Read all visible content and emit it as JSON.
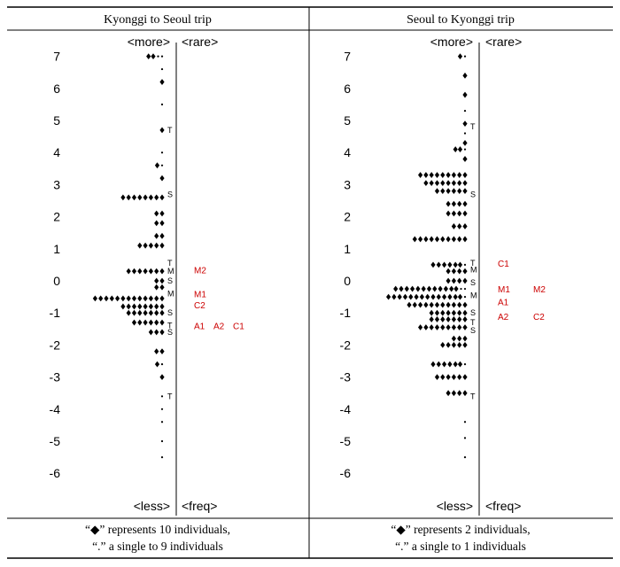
{
  "headers": [
    "Kyonggi to Seoul trip",
    "Seoul to Kyonggi trip"
  ],
  "chart_data": [
    {
      "type": "scatter",
      "title": "Kyonggi to Seoul trip",
      "ylim": [
        -6,
        7
      ],
      "yticks": [
        7,
        6,
        5,
        4,
        3,
        2,
        1,
        0,
        -1,
        -2,
        -3,
        -4,
        -5,
        -6
      ],
      "labels": {
        "more": "<more>",
        "rare": "<rare>",
        "less": "<less>",
        "freq": "<freq>"
      },
      "rows": [
        {
          "y": 7.0,
          "d": 2,
          "s": 2
        },
        {
          "y": 6.6,
          "d": 0,
          "s": 1
        },
        {
          "y": 6.2,
          "d": 1,
          "s": 0
        },
        {
          "y": 5.5,
          "d": 0,
          "s": 1
        },
        {
          "y": 4.7,
          "d": 1,
          "s": 0
        },
        {
          "y": 4.0,
          "d": 0,
          "s": 1
        },
        {
          "y": 3.6,
          "d": 1,
          "s": 1
        },
        {
          "y": 3.2,
          "d": 1,
          "s": 0
        },
        {
          "y": 2.6,
          "d": 8,
          "s": 0
        },
        {
          "y": 2.1,
          "d": 2,
          "s": 0
        },
        {
          "y": 1.8,
          "d": 2,
          "s": 0
        },
        {
          "y": 1.4,
          "d": 2,
          "s": 0
        },
        {
          "y": 1.1,
          "d": 5,
          "s": 0
        },
        {
          "y": 0.3,
          "d": 7,
          "s": 0
        },
        {
          "y": 0.0,
          "d": 2,
          "s": 0
        },
        {
          "y": -0.2,
          "d": 2,
          "s": 0
        },
        {
          "y": -0.55,
          "d": 13,
          "s": 0
        },
        {
          "y": -0.8,
          "d": 8,
          "s": 0
        },
        {
          "y": -1.0,
          "d": 7,
          "s": 0
        },
        {
          "y": -1.3,
          "d": 6,
          "s": 0
        },
        {
          "y": -1.6,
          "d": 3,
          "s": 0
        },
        {
          "y": -2.2,
          "d": 2,
          "s": 0
        },
        {
          "y": -2.6,
          "d": 1,
          "s": 1
        },
        {
          "y": -3.0,
          "d": 1,
          "s": 0
        },
        {
          "y": -3.6,
          "d": 0,
          "s": 1
        },
        {
          "y": -4.0,
          "d": 0,
          "s": 1
        },
        {
          "y": -4.4,
          "d": 0,
          "s": 1
        },
        {
          "y": -5.0,
          "d": 0,
          "s": 1
        },
        {
          "y": -5.5,
          "d": 0,
          "s": 1
        }
      ],
      "markers": [
        {
          "y": 4.7,
          "t": "T"
        },
        {
          "y": 2.7,
          "t": "S"
        },
        {
          "y": 0.55,
          "t": "T"
        },
        {
          "y": 0.3,
          "t": "M"
        },
        {
          "y": 0.0,
          "t": "S"
        },
        {
          "y": -0.4,
          "t": "M"
        },
        {
          "y": -1.0,
          "t": "S"
        },
        {
          "y": -1.4,
          "t": "T"
        },
        {
          "y": -1.6,
          "t": "S"
        },
        {
          "y": -3.6,
          "t": "T"
        }
      ],
      "groups": [
        {
          "y": 0.35,
          "col": 0,
          "t": "M2"
        },
        {
          "y": -0.4,
          "col": 0,
          "t": "M1"
        },
        {
          "y": -0.75,
          "col": 0,
          "t": "C2"
        },
        {
          "y": -1.4,
          "col": 0,
          "t": "A1"
        },
        {
          "y": -1.4,
          "col": 1,
          "t": "A2"
        },
        {
          "y": -1.4,
          "col": 2,
          "t": "C1"
        }
      ],
      "legend": [
        "“◆” represents 10 individuals,",
        "“.” a single to 9 individuals"
      ]
    },
    {
      "type": "scatter",
      "title": "Seoul to Kyonggi trip",
      "ylim": [
        -6,
        7
      ],
      "yticks": [
        7,
        6,
        5,
        4,
        3,
        2,
        1,
        0,
        -1,
        -2,
        -3,
        -4,
        -5,
        -6
      ],
      "labels": {
        "more": "<more>",
        "rare": "<rare>",
        "less": "<less>",
        "freq": "<freq>"
      },
      "rows": [
        {
          "y": 7.0,
          "d": 1,
          "s": 1
        },
        {
          "y": 6.4,
          "d": 1,
          "s": 0
        },
        {
          "y": 5.8,
          "d": 1,
          "s": 0
        },
        {
          "y": 5.3,
          "d": 0,
          "s": 1
        },
        {
          "y": 4.9,
          "d": 1,
          "s": 0
        },
        {
          "y": 4.6,
          "d": 0,
          "s": 1
        },
        {
          "y": 4.3,
          "d": 1,
          "s": 0
        },
        {
          "y": 4.1,
          "d": 2,
          "s": 1
        },
        {
          "y": 3.8,
          "d": 1,
          "s": 0
        },
        {
          "y": 3.3,
          "d": 9,
          "s": 0
        },
        {
          "y": 3.05,
          "d": 8,
          "s": 0
        },
        {
          "y": 2.8,
          "d": 6,
          "s": 0
        },
        {
          "y": 2.4,
          "d": 4,
          "s": 0
        },
        {
          "y": 2.1,
          "d": 4,
          "s": 0
        },
        {
          "y": 1.7,
          "d": 3,
          "s": 0
        },
        {
          "y": 1.3,
          "d": 10,
          "s": 0
        },
        {
          "y": 0.5,
          "d": 6,
          "s": 1
        },
        {
          "y": 0.3,
          "d": 4,
          "s": 0
        },
        {
          "y": 0.0,
          "d": 4,
          "s": 0
        },
        {
          "y": -0.25,
          "d": 12,
          "s": 2
        },
        {
          "y": -0.5,
          "d": 14,
          "s": 1
        },
        {
          "y": -0.75,
          "d": 11,
          "s": 0
        },
        {
          "y": -1.0,
          "d": 7,
          "s": 0
        },
        {
          "y": -1.2,
          "d": 7,
          "s": 0
        },
        {
          "y": -1.45,
          "d": 9,
          "s": 0
        },
        {
          "y": -1.8,
          "d": 3,
          "s": 0
        },
        {
          "y": -2.0,
          "d": 5,
          "s": 0
        },
        {
          "y": -2.6,
          "d": 6,
          "s": 1
        },
        {
          "y": -3.0,
          "d": 6,
          "s": 0
        },
        {
          "y": -3.5,
          "d": 4,
          "s": 0
        },
        {
          "y": -4.4,
          "d": 0,
          "s": 1
        },
        {
          "y": -4.9,
          "d": 0,
          "s": 1
        },
        {
          "y": -5.5,
          "d": 0,
          "s": 1
        }
      ],
      "markers": [
        {
          "y": 4.8,
          "t": "T"
        },
        {
          "y": 2.7,
          "t": "S"
        },
        {
          "y": 0.55,
          "t": "T"
        },
        {
          "y": 0.35,
          "t": "M"
        },
        {
          "y": -0.05,
          "t": "S"
        },
        {
          "y": -0.45,
          "t": "M"
        },
        {
          "y": -1.0,
          "t": "S"
        },
        {
          "y": -1.3,
          "t": "T"
        },
        {
          "y": -1.55,
          "t": "S"
        },
        {
          "y": -3.6,
          "t": "T"
        }
      ],
      "groups": [
        {
          "y": 0.55,
          "col": 0,
          "t": "C1"
        },
        {
          "y": -0.25,
          "col": 0,
          "t": "M1"
        },
        {
          "y": -0.25,
          "col": 2,
          "t": "M2"
        },
        {
          "y": -0.65,
          "col": 0,
          "t": "A1"
        },
        {
          "y": -1.1,
          "col": 0,
          "t": "A2"
        },
        {
          "y": -1.1,
          "col": 2,
          "t": "C2"
        }
      ],
      "legend": [
        "“◆” represents 2 individuals,",
        "“.” a single to 1 individuals"
      ]
    }
  ],
  "colors": {
    "groups": "#cc0000",
    "ink": "#000000"
  }
}
